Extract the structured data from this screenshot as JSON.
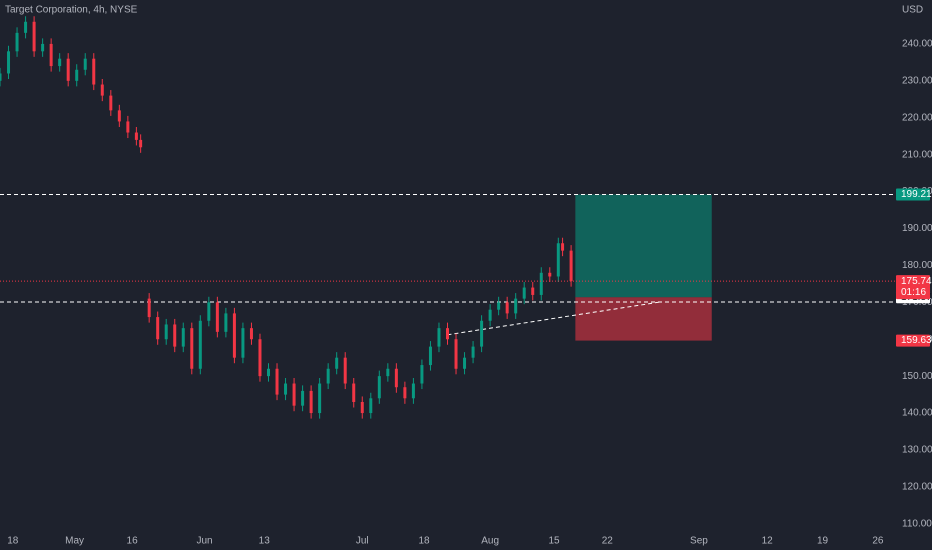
{
  "chart_data": {
    "type": "candlestick",
    "title": "Target Corporation, 4h, NYSE",
    "currency": "USD",
    "up_color": "#089981",
    "down_color": "#f23645",
    "x": [
      0,
      2,
      4,
      6,
      8,
      10,
      12,
      14,
      16,
      18,
      20,
      22,
      24,
      26,
      28,
      30,
      32,
      33,
      35,
      37,
      39,
      41,
      43,
      45,
      47,
      49,
      51,
      53,
      55,
      57,
      59,
      61,
      63,
      65,
      67,
      69,
      71,
      73,
      75,
      77,
      79,
      81,
      83,
      85,
      87,
      89,
      91,
      93,
      95,
      97,
      99,
      101,
      103,
      105,
      107,
      109,
      111,
      113,
      115,
      117,
      119,
      121,
      123,
      125,
      127,
      129,
      131,
      132,
      134
    ],
    "open": [
      230,
      232,
      238,
      243,
      246,
      238,
      240,
      234,
      236,
      230,
      233,
      236,
      229,
      226,
      222,
      219,
      216,
      214,
      171,
      166,
      160,
      164,
      158,
      163,
      152,
      165,
      170,
      162,
      167,
      155,
      163,
      160,
      150,
      152,
      145,
      148,
      142,
      146,
      140,
      148,
      152,
      155,
      148,
      143,
      140,
      144,
      150,
      152,
      147,
      144,
      148,
      153,
      158,
      163,
      160,
      152,
      155,
      158,
      165,
      168,
      170,
      167,
      171,
      174,
      172,
      178,
      177,
      186,
      184
    ],
    "high": [
      233.5,
      239.5,
      244.5,
      247.5,
      247.5,
      241.5,
      241.5,
      237.5,
      237.5,
      234.5,
      237.5,
      237.5,
      230.5,
      227.5,
      223.5,
      220.5,
      217.5,
      215.5,
      172.5,
      167.5,
      165.5,
      165.5,
      164.5,
      164.5,
      166.5,
      171.5,
      171.5,
      168.5,
      168.5,
      164.5,
      164.5,
      161.5,
      153.5,
      153.5,
      149.5,
      149.5,
      147.5,
      147.5,
      149.5,
      153.5,
      156.5,
      156.5,
      149.5,
      144.5,
      145.5,
      151.5,
      153.5,
      153.5,
      148.5,
      149.5,
      154.5,
      159.5,
      164.5,
      164.5,
      161.5,
      156.5,
      159.5,
      166.5,
      169.5,
      171.5,
      171.5,
      172.5,
      175.5,
      175.5,
      179.5,
      179.5,
      187.5,
      187.5,
      185.5
    ],
    "low": [
      228.5,
      230.5,
      236.5,
      241.5,
      236.5,
      236.5,
      232.5,
      232.5,
      228.5,
      228.5,
      231.5,
      227.5,
      224.5,
      220.5,
      217.5,
      214.5,
      212.5,
      210.5,
      164.5,
      158.5,
      158.5,
      156.5,
      156.5,
      150.5,
      150.5,
      163.5,
      160.5,
      160.5,
      153.5,
      153.5,
      158.5,
      148.5,
      148.5,
      143.5,
      143.5,
      140.5,
      140.5,
      138.5,
      138.5,
      146.5,
      150.5,
      146.5,
      141.5,
      138.5,
      138.5,
      142.5,
      148.5,
      145.5,
      142.5,
      142.5,
      146.5,
      151.5,
      156.5,
      158.5,
      150.5,
      150.5,
      153.5,
      156.5,
      163.5,
      166.5,
      165.5,
      165.5,
      169.5,
      170.5,
      170.5,
      175.5,
      175.5,
      182.5,
      174.24
    ],
    "close": [
      232,
      238,
      243,
      246,
      238,
      240,
      234,
      236,
      230,
      233,
      236,
      229,
      226,
      222,
      219,
      216,
      214,
      212,
      166,
      160,
      164,
      158,
      163,
      152,
      165,
      170,
      162,
      167,
      155,
      163,
      160,
      150,
      152,
      145,
      148,
      142,
      146,
      140,
      148,
      152,
      155,
      148,
      143,
      140,
      144,
      150,
      152,
      147,
      144,
      148,
      153,
      158,
      163,
      160,
      152,
      155,
      158,
      165,
      168,
      170,
      167,
      171,
      174,
      172,
      178,
      177,
      186,
      184,
      175.74
    ],
    "xlim": [
      0,
      210
    ],
    "xticks": [
      {
        "value": 3,
        "label": "18"
      },
      {
        "value": 17.5,
        "label": "May"
      },
      {
        "value": 31,
        "label": "16"
      },
      {
        "value": 48,
        "label": "Jun"
      },
      {
        "value": 62,
        "label": "13"
      },
      {
        "value": 85,
        "label": "Jul"
      },
      {
        "value": 99.5,
        "label": "18"
      },
      {
        "value": 115,
        "label": "Aug"
      },
      {
        "value": 130,
        "label": "15"
      },
      {
        "value": 142.5,
        "label": "22"
      },
      {
        "value": 164,
        "label": "Sep"
      },
      {
        "value": 180,
        "label": "12"
      },
      {
        "value": 193,
        "label": "19"
      },
      {
        "value": 206,
        "label": "26"
      }
    ],
    "ylim": [
      102.9,
      251.9
    ],
    "yticks": [
      {
        "value": 240,
        "label": "240.00"
      },
      {
        "value": 230,
        "label": "230.00"
      },
      {
        "value": 220,
        "label": "220.00"
      },
      {
        "value": 210,
        "label": "210.00"
      },
      {
        "value": 200,
        "label": "200.00"
      },
      {
        "value": 190,
        "label": "190.00"
      },
      {
        "value": 180,
        "label": "180.00"
      },
      {
        "value": 170,
        "label": "170.00"
      },
      {
        "value": 160,
        "label": "160.00"
      },
      {
        "value": 150,
        "label": "150.00"
      },
      {
        "value": 140,
        "label": "140.00"
      },
      {
        "value": 130,
        "label": "130.00"
      },
      {
        "value": 120,
        "label": "120.00"
      },
      {
        "value": 110,
        "label": "110.00"
      }
    ],
    "horizontal_lines": [
      199.21,
      170.1
    ],
    "position": {
      "x_start": 135,
      "x_end": 167,
      "target": 199.21,
      "entry": 171.37,
      "stop": 159.63
    },
    "trendline": {
      "x": [
        105,
        155
      ],
      "y": [
        161.2,
        170.1
      ]
    },
    "price_labels": [
      {
        "value": 199.21,
        "label": "199.21",
        "color": "#089981"
      },
      {
        "value": 171.37,
        "label": "171.37",
        "color": "#ffffff"
      },
      {
        "value": 175.74,
        "label": "175.74",
        "countdown": "01:16",
        "color": "#f23645"
      },
      {
        "value": 159.63,
        "label": "159.63",
        "color": "#f23645"
      }
    ]
  }
}
